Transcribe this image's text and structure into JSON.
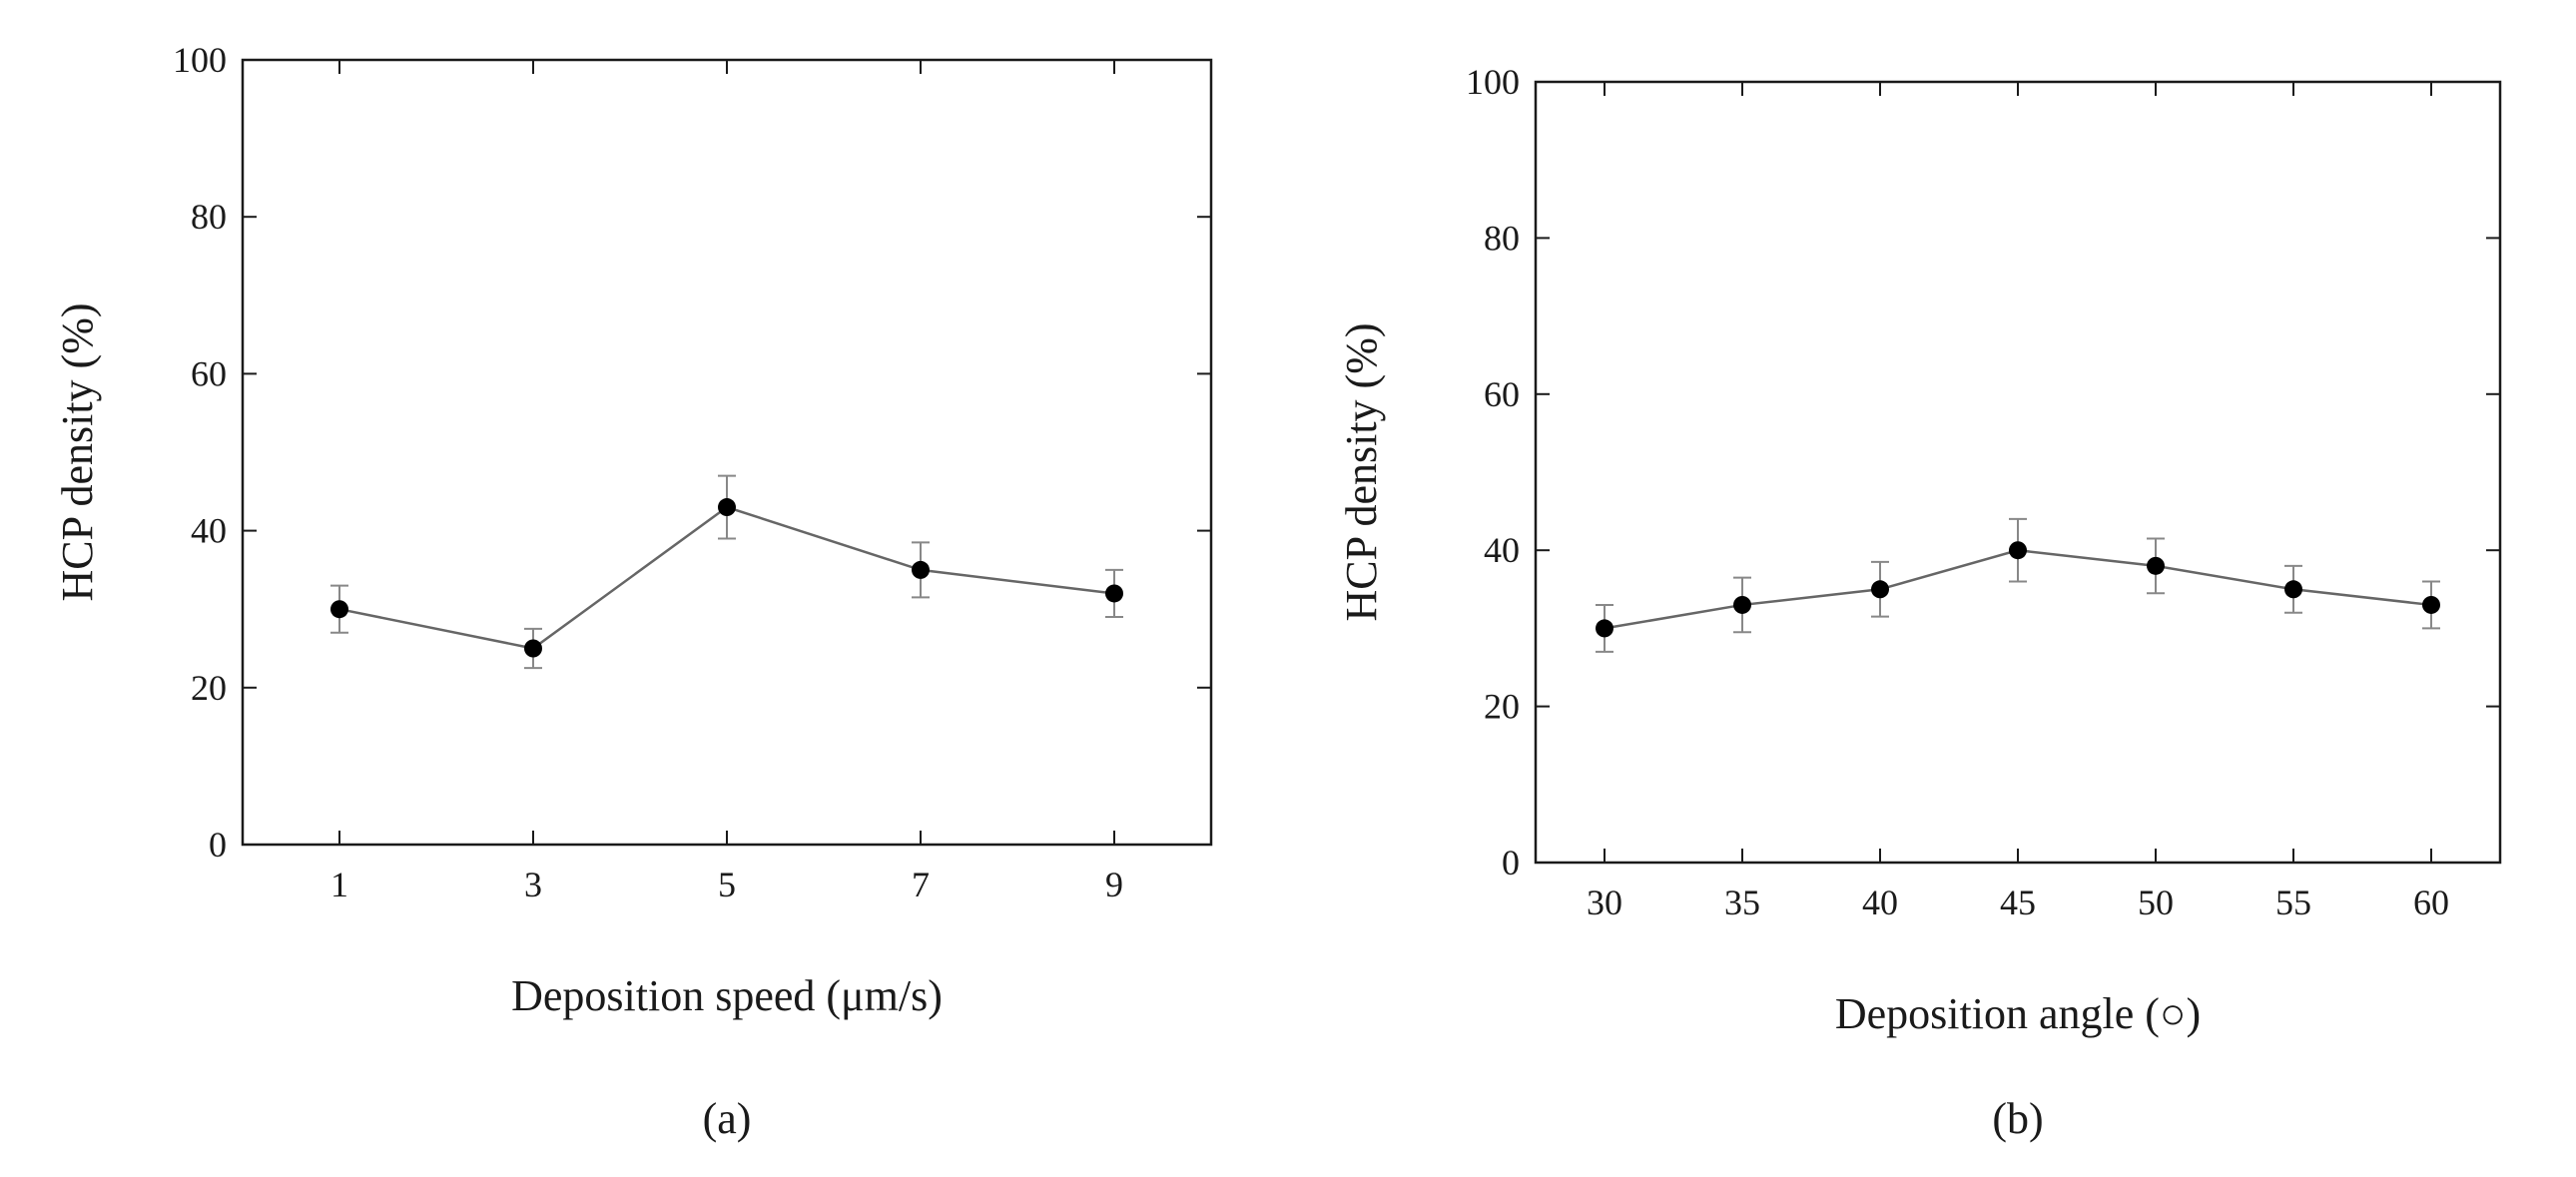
{
  "chart_data": [
    {
      "type": "line",
      "panel_label": "(a)",
      "title": "",
      "xlabel": "Deposition speed (μm/s)",
      "ylabel": "HCP density (%)",
      "x": [
        1,
        3,
        5,
        7,
        9
      ],
      "xticks": [
        "1",
        "3",
        "5",
        "7",
        "9"
      ],
      "xlim": [
        0,
        10
      ],
      "ylim": [
        0,
        100
      ],
      "yticks": [
        "0",
        "20",
        "40",
        "60",
        "80",
        "100"
      ],
      "grid": false,
      "series": [
        {
          "name": "HCP density",
          "values": [
            30,
            25,
            43,
            35,
            32
          ],
          "errors": [
            3,
            2.5,
            4,
            3.5,
            3
          ]
        }
      ]
    },
    {
      "type": "line",
      "panel_label": "(b)",
      "title": "",
      "xlabel": "Deposition angle (○)",
      "ylabel": "HCP density (%)",
      "x": [
        30,
        35,
        40,
        45,
        50,
        55,
        60
      ],
      "xticks": [
        "30",
        "35",
        "40",
        "45",
        "50",
        "55",
        "60"
      ],
      "xlim": [
        27.5,
        62.5
      ],
      "ylim": [
        0,
        100
      ],
      "yticks": [
        "0",
        "20",
        "40",
        "60",
        "80",
        "100"
      ],
      "grid": false,
      "series": [
        {
          "name": "HCP density",
          "values": [
            30,
            33,
            35,
            40,
            38,
            35,
            33
          ],
          "errors": [
            3,
            3.5,
            3.5,
            4,
            3.5,
            3,
            3
          ]
        }
      ]
    }
  ],
  "colors": {
    "line": "#666666",
    "marker": "#000000",
    "axis": "#1a1a1a"
  }
}
